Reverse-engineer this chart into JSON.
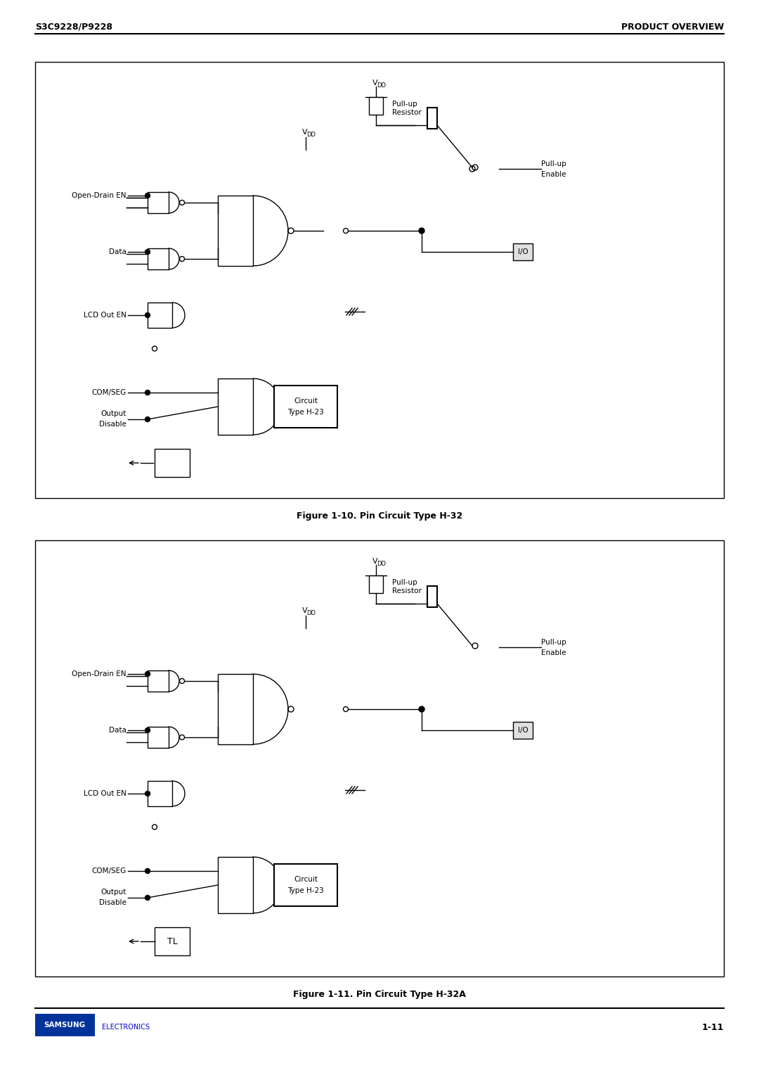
{
  "page_bg": "#ffffff",
  "header_left": "S3C9228/P9228",
  "header_right": "PRODUCT OVERVIEW",
  "header_line_color": "#000000",
  "footer_line_color": "#000000",
  "footer_page": "1-11",
  "samsung_text": "SAMSUNG",
  "electronics_text": "ELECTRONICS",
  "samsung_color": "#0000cc",
  "electronics_color": "#0000cc",
  "fig1_caption": "Figure 1-10. Pin Circuit Type H-32",
  "fig2_caption": "Figure 1-11. Pin Circuit Type H-32A",
  "box_color": "#000000",
  "line_color": "#000000",
  "text_color": "#000000",
  "font_size_header": 9,
  "font_size_label": 8,
  "font_size_caption": 9,
  "font_size_footer": 9
}
